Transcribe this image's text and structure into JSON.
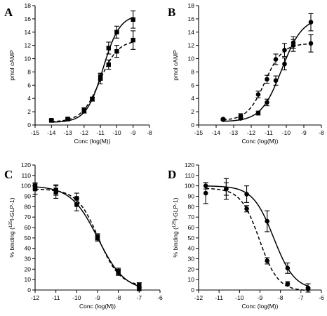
{
  "chart_data": [
    {
      "panel": "A",
      "type": "line",
      "xlabel": "Conc (log(M))",
      "ylabel": "pmol cAMP",
      "xlim": [
        -15,
        -8
      ],
      "ylim": [
        0,
        18
      ],
      "xticks": [
        -15,
        -14,
        -13,
        -12,
        -11,
        -10,
        -9,
        -8
      ],
      "yticks": [
        0,
        2,
        4,
        6,
        8,
        10,
        12,
        14,
        16,
        18
      ],
      "series": [
        {
          "marker": "square",
          "line": "solid",
          "x": [
            -14,
            -13,
            -12,
            -11.5,
            -11,
            -10.5,
            -10,
            -9
          ],
          "y": [
            0.7,
            0.9,
            2.1,
            3.9,
            7.0,
            11.6,
            14.0,
            15.9
          ],
          "err": [
            0.1,
            0.15,
            0.3,
            0.3,
            0.8,
            0.9,
            0.9,
            1.3
          ]
        },
        {
          "marker": "square",
          "line": "dashed",
          "x": [
            -14,
            -13,
            -12,
            -11.5,
            -11,
            -10.5,
            -10,
            -9
          ],
          "y": [
            0.7,
            0.9,
            2.2,
            3.9,
            7.3,
            9.1,
            11.1,
            12.8
          ],
          "err": [
            0.1,
            0.15,
            0.4,
            0.3,
            0.5,
            0.7,
            0.9,
            1.4
          ]
        }
      ]
    },
    {
      "panel": "B",
      "type": "line",
      "xlabel": "Conc (log(M))",
      "ylabel": "pmol cAMP",
      "xlim": [
        -15,
        -8
      ],
      "ylim": [
        0,
        18
      ],
      "xticks": [
        -15,
        -14,
        -13,
        -12,
        -11,
        -10,
        -9,
        -8
      ],
      "yticks": [
        0,
        2,
        4,
        6,
        8,
        10,
        12,
        14,
        16,
        18
      ],
      "series": [
        {
          "marker": "circle",
          "line": "solid",
          "x": [
            -13.6,
            -12.6,
            -11.6,
            -11.1,
            -10.6,
            -10.1,
            -9.6,
            -8.6
          ],
          "y": [
            0.8,
            1.0,
            1.8,
            3.4,
            6.7,
            9.2,
            12.4,
            15.5
          ],
          "err": [
            0.1,
            0.2,
            0.3,
            0.5,
            0.7,
            0.9,
            0.9,
            1.3
          ]
        },
        {
          "marker": "circle",
          "line": "dashed",
          "x": [
            -13.6,
            -12.6,
            -11.6,
            -11.1,
            -10.6,
            -10.1,
            -9.6,
            -8.6
          ],
          "y": [
            0.9,
            1.4,
            4.6,
            6.9,
            9.9,
            11.3,
            12.0,
            12.3
          ],
          "err": [
            0.1,
            0.3,
            0.5,
            0.6,
            0.8,
            1.0,
            0.9,
            1.3
          ]
        }
      ]
    },
    {
      "panel": "C",
      "type": "line",
      "xlabel": "Conc (log(M))",
      "ylabel_pre": "% binding (",
      "ylabel_sup": "125",
      "ylabel_post": "I-GLP-1)",
      "xlim": [
        -12,
        -6
      ],
      "ylim": [
        0,
        120
      ],
      "xticks": [
        -12,
        -11,
        -10,
        -9,
        -8,
        -7,
        -6
      ],
      "yticks": [
        0,
        10,
        20,
        30,
        40,
        50,
        60,
        70,
        80,
        90,
        100,
        110,
        120
      ],
      "series": [
        {
          "marker": "square",
          "line": "solid",
          "x": [
            -12,
            -11,
            -10,
            -9,
            -8,
            -7
          ],
          "y": [
            100,
            96,
            82,
            50,
            18,
            1
          ],
          "err": [
            3,
            5,
            6,
            3,
            3,
            1
          ]
        },
        {
          "marker": "square",
          "line": "dashed",
          "x": [
            -12,
            -11,
            -10,
            -9,
            -8,
            -7
          ],
          "y": [
            97,
            94,
            88,
            51,
            17,
            5
          ],
          "err": [
            5,
            6,
            5,
            3,
            3,
            2
          ]
        }
      ]
    },
    {
      "panel": "D",
      "type": "line",
      "xlabel": "Conc (log(M))",
      "ylabel_pre": "% binding (",
      "ylabel_sup": "125",
      "ylabel_post": "I-GLP-1)",
      "xlim": [
        -12,
        -6
      ],
      "ylim": [
        0,
        120
      ],
      "xticks": [
        -12,
        -11,
        -10,
        -9,
        -8,
        -7,
        -6
      ],
      "yticks": [
        0,
        10,
        20,
        30,
        40,
        50,
        60,
        70,
        80,
        90,
        100,
        110,
        120
      ],
      "series": [
        {
          "marker": "circle",
          "line": "solid",
          "x": [
            -11.65,
            -10.65,
            -9.65,
            -8.65,
            -7.65,
            -6.65
          ],
          "y": [
            100,
            97,
            92,
            66,
            21,
            2
          ],
          "err": [
            3,
            10,
            8,
            10,
            5,
            4
          ]
        },
        {
          "marker": "circle",
          "line": "dashed",
          "x": [
            -11.65,
            -10.65,
            -9.65,
            -8.65,
            -7.65,
            -6.65
          ],
          "y": [
            93,
            97,
            78,
            28,
            6,
            1
          ],
          "err": [
            10,
            6,
            3,
            3,
            2,
            1
          ]
        }
      ]
    }
  ]
}
